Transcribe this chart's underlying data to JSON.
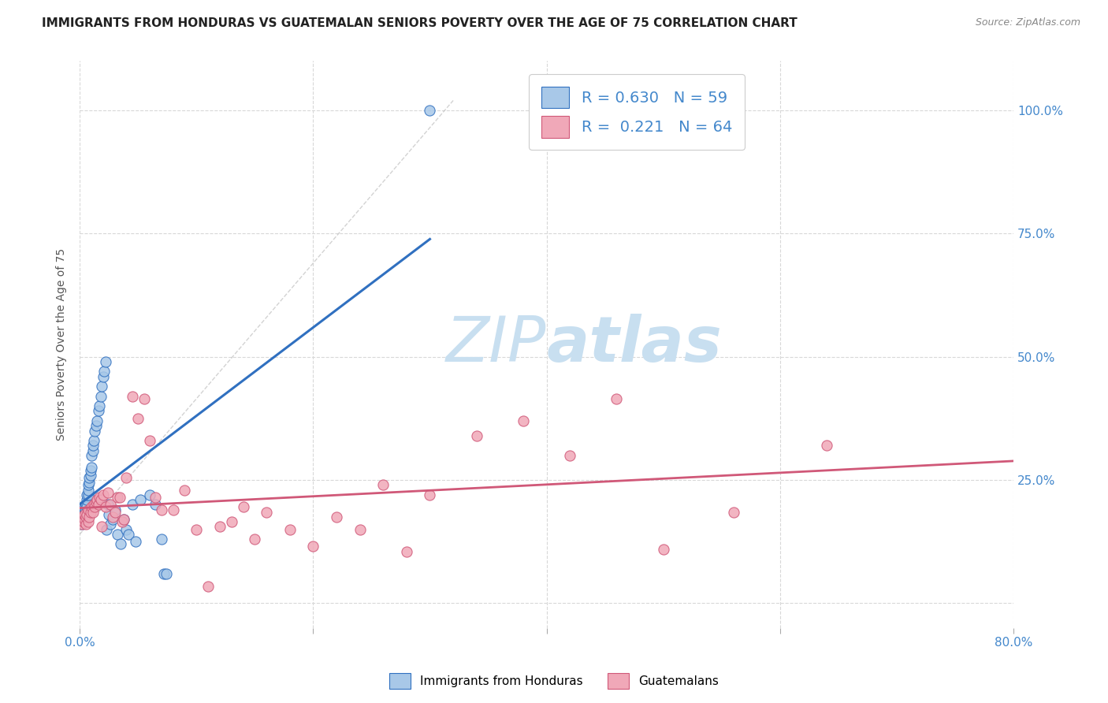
{
  "title": "IMMIGRANTS FROM HONDURAS VS GUATEMALAN SENIORS POVERTY OVER THE AGE OF 75 CORRELATION CHART",
  "source": "Source: ZipAtlas.com",
  "ylabel": "Seniors Poverty Over the Age of 75",
  "legend_label1": "Immigrants from Honduras",
  "legend_label2": "Guatemalans",
  "R1": 0.63,
  "N1": 59,
  "R2": 0.221,
  "N2": 64,
  "color_blue": "#A8C8E8",
  "color_pink": "#F0A8B8",
  "color_line_blue": "#3070C0",
  "color_line_pink": "#D05878",
  "color_grid": "#D8D8D8",
  "color_title": "#222222",
  "color_source": "#888888",
  "color_axis": "#4488CC",
  "color_ylabel": "#555555",
  "watermark_color": "#C8DFF0",
  "background_color": "#FFFFFF",
  "xlim": [
    0.0,
    0.8
  ],
  "ylim": [
    -0.05,
    1.1
  ],
  "title_fontsize": 11,
  "source_fontsize": 9,
  "blue_points_x": [
    0.001,
    0.001,
    0.002,
    0.002,
    0.002,
    0.003,
    0.003,
    0.003,
    0.004,
    0.004,
    0.004,
    0.005,
    0.005,
    0.005,
    0.006,
    0.006,
    0.006,
    0.007,
    0.007,
    0.007,
    0.008,
    0.008,
    0.009,
    0.009,
    0.01,
    0.01,
    0.011,
    0.011,
    0.012,
    0.013,
    0.014,
    0.015,
    0.016,
    0.017,
    0.018,
    0.019,
    0.02,
    0.021,
    0.022,
    0.023,
    0.024,
    0.025,
    0.026,
    0.028,
    0.03,
    0.032,
    0.035,
    0.038,
    0.04,
    0.042,
    0.045,
    0.048,
    0.052,
    0.06,
    0.065,
    0.07,
    0.072,
    0.074,
    0.3
  ],
  "blue_points_y": [
    0.165,
    0.17,
    0.16,
    0.175,
    0.18,
    0.17,
    0.178,
    0.185,
    0.175,
    0.182,
    0.192,
    0.18,
    0.19,
    0.2,
    0.195,
    0.21,
    0.22,
    0.22,
    0.23,
    0.24,
    0.245,
    0.255,
    0.26,
    0.27,
    0.275,
    0.3,
    0.31,
    0.32,
    0.33,
    0.35,
    0.36,
    0.37,
    0.39,
    0.4,
    0.42,
    0.44,
    0.46,
    0.47,
    0.49,
    0.15,
    0.2,
    0.18,
    0.16,
    0.17,
    0.19,
    0.14,
    0.12,
    0.17,
    0.15,
    0.14,
    0.2,
    0.125,
    0.21,
    0.22,
    0.2,
    0.13,
    0.06,
    0.06,
    1.0
  ],
  "pink_points_x": [
    0.001,
    0.002,
    0.002,
    0.003,
    0.003,
    0.004,
    0.004,
    0.005,
    0.005,
    0.006,
    0.007,
    0.007,
    0.008,
    0.009,
    0.01,
    0.011,
    0.012,
    0.013,
    0.014,
    0.015,
    0.016,
    0.017,
    0.018,
    0.019,
    0.02,
    0.022,
    0.024,
    0.026,
    0.028,
    0.03,
    0.032,
    0.034,
    0.036,
    0.038,
    0.04,
    0.045,
    0.05,
    0.055,
    0.06,
    0.065,
    0.07,
    0.08,
    0.09,
    0.1,
    0.11,
    0.12,
    0.13,
    0.14,
    0.15,
    0.16,
    0.18,
    0.2,
    0.22,
    0.24,
    0.26,
    0.28,
    0.3,
    0.34,
    0.38,
    0.42,
    0.46,
    0.5,
    0.56,
    0.64
  ],
  "pink_points_y": [
    0.165,
    0.16,
    0.175,
    0.165,
    0.175,
    0.17,
    0.18,
    0.16,
    0.175,
    0.18,
    0.165,
    0.19,
    0.175,
    0.185,
    0.195,
    0.185,
    0.2,
    0.195,
    0.205,
    0.21,
    0.2,
    0.215,
    0.21,
    0.155,
    0.22,
    0.195,
    0.225,
    0.2,
    0.175,
    0.185,
    0.215,
    0.215,
    0.165,
    0.17,
    0.255,
    0.42,
    0.375,
    0.415,
    0.33,
    0.215,
    0.19,
    0.19,
    0.23,
    0.15,
    0.035,
    0.155,
    0.165,
    0.195,
    0.13,
    0.185,
    0.15,
    0.115,
    0.175,
    0.15,
    0.24,
    0.105,
    0.22,
    0.34,
    0.37,
    0.3,
    0.415,
    0.11,
    0.185,
    0.32
  ]
}
